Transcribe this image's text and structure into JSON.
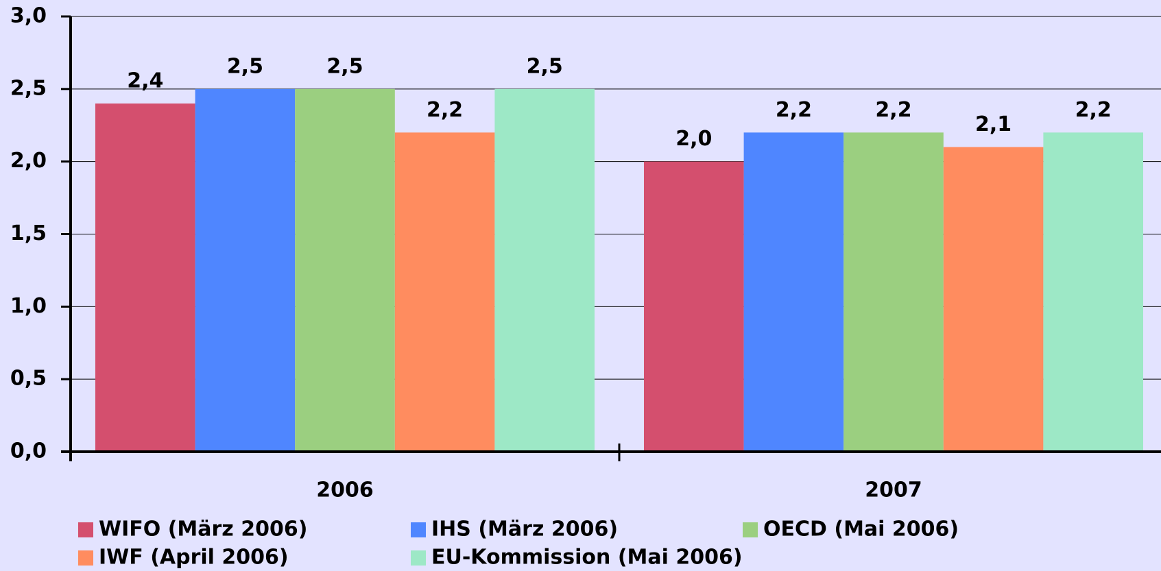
{
  "chart_data": {
    "type": "bar",
    "categories": [
      "2006",
      "2007"
    ],
    "series": [
      {
        "name": "WIFO (März 2006)",
        "color": "#d44f6e",
        "values": [
          2.4,
          2.0
        ],
        "value_labels": [
          "2,4",
          "2,0"
        ]
      },
      {
        "name": "IHS (März 2006)",
        "color": "#4f86ff",
        "values": [
          2.5,
          2.2
        ],
        "value_labels": [
          "2,5",
          "2,2"
        ]
      },
      {
        "name": "OECD (Mai 2006)",
        "color": "#9bcf80",
        "values": [
          2.5,
          2.2
        ],
        "value_labels": [
          "2,5",
          "2,2"
        ]
      },
      {
        "name": "IWF (April 2006)",
        "color": "#ff8c5f",
        "values": [
          2.2,
          2.1
        ],
        "value_labels": [
          "2,2",
          "2,1"
        ]
      },
      {
        "name": "EU-Kommission (Mai 2006)",
        "color": "#9de8c6",
        "values": [
          2.5,
          2.2
        ],
        "value_labels": [
          "2,5",
          "2,2"
        ]
      }
    ],
    "ylim": [
      0,
      3
    ],
    "yticks": [
      {
        "value": 0,
        "label": "0,0"
      },
      {
        "value": 0.5,
        "label": "0,5"
      },
      {
        "value": 1,
        "label": "1,0"
      },
      {
        "value": 1.5,
        "label": "1,5"
      },
      {
        "value": 2,
        "label": "2,0"
      },
      {
        "value": 2.5,
        "label": "2,5"
      },
      {
        "value": 3,
        "label": "3,0"
      }
    ],
    "grid": true
  }
}
